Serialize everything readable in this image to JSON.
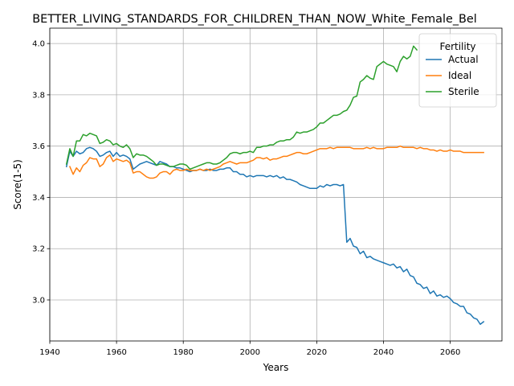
{
  "chart_data": {
    "type": "line",
    "title": "BETTER_LIVING_STANDARDS_FOR_CHILDREN_THAN_NOW_White_Female_Bel",
    "xlabel": "Years",
    "ylabel": "Score(1-5)",
    "xlim": [
      1940,
      2075.5
    ],
    "ylim": [
      2.84,
      4.06
    ],
    "xticks": [
      1940,
      1960,
      1980,
      2000,
      2020,
      2040,
      2060
    ],
    "yticks": [
      3.0,
      3.2,
      3.4,
      3.6,
      3.8,
      4.0
    ],
    "xtick_labels": [
      "1940",
      "1960",
      "1980",
      "2000",
      "2020",
      "2040",
      "2060"
    ],
    "ytick_labels": [
      "3.0",
      "3.2",
      "3.4",
      "3.6",
      "3.8",
      "4.0"
    ],
    "grid": true,
    "legend": {
      "title": "Fertility",
      "position": "top-right"
    },
    "series": [
      {
        "name": "Actual",
        "color": "#1f77b4",
        "x": [
          1945,
          1946,
          1947,
          1948,
          1949,
          1950,
          1951,
          1952,
          1953,
          1954,
          1955,
          1956,
          1957,
          1958,
          1959,
          1960,
          1961,
          1962,
          1963,
          1964,
          1965,
          1966,
          1967,
          1968,
          1969,
          1970,
          1971,
          1972,
          1973,
          1974,
          1975,
          1976,
          1977,
          1978,
          1979,
          1980,
          1981,
          1982,
          1983,
          1984,
          1985,
          1986,
          1987,
          1988,
          1989,
          1990,
          1991,
          1992,
          1993,
          1994,
          1995,
          1996,
          1997,
          1998,
          1999,
          2000,
          2001,
          2002,
          2003,
          2004,
          2005,
          2006,
          2007,
          2008,
          2009,
          2010,
          2011,
          2012,
          2013,
          2014,
          2015,
          2016,
          2017,
          2018,
          2019,
          2020,
          2021,
          2022,
          2023,
          2024,
          2025,
          2026,
          2027,
          2028,
          2029,
          2030,
          2031,
          2032,
          2033,
          2034,
          2035,
          2036,
          2037,
          2038,
          2039,
          2040,
          2041,
          2042,
          2043,
          2044,
          2045,
          2046,
          2047,
          2048,
          2049,
          2050,
          2051,
          2052,
          2053,
          2054,
          2055,
          2056,
          2057,
          2058,
          2059,
          2060,
          2061,
          2062,
          2063,
          2064,
          2065,
          2066,
          2067,
          2068,
          2069,
          2070
        ],
        "y": [
          3.52,
          3.58,
          3.56,
          3.58,
          3.57,
          3.575,
          3.59,
          3.595,
          3.59,
          3.58,
          3.56,
          3.565,
          3.575,
          3.58,
          3.56,
          3.575,
          3.56,
          3.565,
          3.56,
          3.55,
          3.51,
          3.52,
          3.53,
          3.535,
          3.54,
          3.535,
          3.53,
          3.525,
          3.54,
          3.535,
          3.53,
          3.52,
          3.52,
          3.515,
          3.515,
          3.51,
          3.505,
          3.5,
          3.505,
          3.505,
          3.51,
          3.505,
          3.505,
          3.51,
          3.505,
          3.505,
          3.51,
          3.51,
          3.515,
          3.515,
          3.5,
          3.5,
          3.49,
          3.49,
          3.48,
          3.485,
          3.48,
          3.485,
          3.485,
          3.485,
          3.48,
          3.485,
          3.48,
          3.485,
          3.475,
          3.48,
          3.47,
          3.47,
          3.465,
          3.46,
          3.45,
          3.445,
          3.44,
          3.435,
          3.435,
          3.435,
          3.445,
          3.44,
          3.45,
          3.445,
          3.45,
          3.45,
          3.445,
          3.45,
          3.225,
          3.24,
          3.21,
          3.205,
          3.18,
          3.19,
          3.165,
          3.17,
          3.16,
          3.155,
          3.15,
          3.145,
          3.14,
          3.135,
          3.14,
          3.125,
          3.13,
          3.11,
          3.12,
          3.095,
          3.09,
          3.065,
          3.06,
          3.045,
          3.05,
          3.025,
          3.035,
          3.015,
          3.02,
          3.01,
          3.015,
          3.005,
          2.99,
          2.985,
          2.975,
          2.975,
          2.95,
          2.945,
          2.93,
          2.925,
          2.905,
          2.915
        ]
      },
      {
        "name": "Ideal",
        "color": "#ff7f0e",
        "x": [
          1946,
          1947,
          1948,
          1949,
          1950,
          1951,
          1952,
          1953,
          1954,
          1955,
          1956,
          1957,
          1958,
          1959,
          1960,
          1961,
          1962,
          1963,
          1964,
          1965,
          1966,
          1967,
          1968,
          1969,
          1970,
          1971,
          1972,
          1973,
          1974,
          1975,
          1976,
          1977,
          1978,
          1979,
          1980,
          1981,
          1982,
          1983,
          1984,
          1985,
          1986,
          1987,
          1988,
          1989,
          1990,
          1991,
          1992,
          1993,
          1994,
          1995,
          1996,
          1997,
          1998,
          1999,
          2000,
          2001,
          2002,
          2003,
          2004,
          2005,
          2006,
          2007,
          2008,
          2009,
          2010,
          2011,
          2012,
          2013,
          2014,
          2015,
          2016,
          2017,
          2018,
          2019,
          2020,
          2021,
          2022,
          2023,
          2024,
          2025,
          2026,
          2027,
          2028,
          2029,
          2030,
          2031,
          2032,
          2033,
          2034,
          2035,
          2036,
          2037,
          2038,
          2039,
          2040,
          2041,
          2042,
          2043,
          2044,
          2045,
          2046,
          2047,
          2048,
          2049,
          2050,
          2051,
          2052,
          2053,
          2054,
          2055,
          2056,
          2057,
          2058,
          2059,
          2060,
          2061,
          2062,
          2063,
          2064,
          2065,
          2066,
          2067,
          2068,
          2069,
          2070
        ],
        "y": [
          3.52,
          3.49,
          3.515,
          3.5,
          3.525,
          3.535,
          3.555,
          3.55,
          3.55,
          3.52,
          3.53,
          3.555,
          3.565,
          3.54,
          3.55,
          3.545,
          3.54,
          3.545,
          3.535,
          3.495,
          3.5,
          3.5,
          3.49,
          3.48,
          3.475,
          3.475,
          3.48,
          3.495,
          3.5,
          3.5,
          3.49,
          3.505,
          3.51,
          3.505,
          3.505,
          3.51,
          3.505,
          3.505,
          3.505,
          3.51,
          3.505,
          3.51,
          3.505,
          3.51,
          3.515,
          3.52,
          3.53,
          3.535,
          3.54,
          3.535,
          3.53,
          3.535,
          3.535,
          3.535,
          3.54,
          3.545,
          3.555,
          3.555,
          3.55,
          3.555,
          3.545,
          3.55,
          3.55,
          3.555,
          3.56,
          3.56,
          3.565,
          3.57,
          3.575,
          3.575,
          3.57,
          3.57,
          3.575,
          3.58,
          3.585,
          3.59,
          3.59,
          3.59,
          3.595,
          3.59,
          3.595,
          3.595,
          3.595,
          3.595,
          3.595,
          3.59,
          3.59,
          3.59,
          3.59,
          3.595,
          3.59,
          3.595,
          3.59,
          3.59,
          3.59,
          3.595,
          3.595,
          3.595,
          3.595,
          3.6,
          3.595,
          3.595,
          3.595,
          3.595,
          3.59,
          3.595,
          3.59,
          3.59,
          3.585,
          3.585,
          3.58,
          3.585,
          3.58,
          3.58,
          3.585,
          3.58,
          3.58,
          3.58,
          3.575,
          3.575,
          3.575,
          3.575,
          3.575,
          3.575,
          3.575
        ]
      },
      {
        "name": "Sterile",
        "color": "#2ca02c",
        "x": [
          1945,
          1946,
          1947,
          1948,
          1949,
          1950,
          1951,
          1952,
          1953,
          1954,
          1955,
          1956,
          1957,
          1958,
          1959,
          1960,
          1961,
          1962,
          1963,
          1964,
          1965,
          1966,
          1967,
          1968,
          1969,
          1970,
          1971,
          1972,
          1973,
          1974,
          1975,
          1976,
          1977,
          1978,
          1979,
          1980,
          1981,
          1982,
          1983,
          1984,
          1985,
          1986,
          1987,
          1988,
          1989,
          1990,
          1991,
          1992,
          1993,
          1994,
          1995,
          1996,
          1997,
          1998,
          1999,
          2000,
          2001,
          2002,
          2003,
          2004,
          2005,
          2006,
          2007,
          2008,
          2009,
          2010,
          2011,
          2012,
          2013,
          2014,
          2015,
          2016,
          2017,
          2018,
          2019,
          2020,
          2021,
          2022,
          2023,
          2024,
          2025,
          2026,
          2027,
          2028,
          2029,
          2030,
          2031,
          2032,
          2033,
          2034,
          2035,
          2036,
          2037,
          2038,
          2039,
          2040,
          2041,
          2042,
          2043,
          2044,
          2045,
          2046,
          2047,
          2048,
          2049,
          2050
        ],
        "y": [
          3.53,
          3.59,
          3.56,
          3.62,
          3.62,
          3.645,
          3.64,
          3.65,
          3.645,
          3.64,
          3.61,
          3.615,
          3.625,
          3.62,
          3.605,
          3.61,
          3.6,
          3.595,
          3.605,
          3.59,
          3.555,
          3.57,
          3.565,
          3.565,
          3.56,
          3.55,
          3.54,
          3.525,
          3.53,
          3.53,
          3.525,
          3.52,
          3.52,
          3.525,
          3.53,
          3.53,
          3.525,
          3.51,
          3.515,
          3.52,
          3.525,
          3.53,
          3.535,
          3.535,
          3.53,
          3.53,
          3.535,
          3.545,
          3.555,
          3.57,
          3.575,
          3.575,
          3.57,
          3.575,
          3.575,
          3.58,
          3.575,
          3.595,
          3.595,
          3.6,
          3.6,
          3.605,
          3.605,
          3.615,
          3.62,
          3.62,
          3.625,
          3.625,
          3.635,
          3.655,
          3.65,
          3.655,
          3.655,
          3.66,
          3.665,
          3.675,
          3.69,
          3.69,
          3.7,
          3.71,
          3.72,
          3.72,
          3.725,
          3.735,
          3.74,
          3.76,
          3.79,
          3.795,
          3.85,
          3.86,
          3.875,
          3.865,
          3.86,
          3.91,
          3.92,
          3.93,
          3.92,
          3.915,
          3.91,
          3.89,
          3.93,
          3.95,
          3.94,
          3.95,
          3.99,
          3.975
        ]
      }
    ]
  }
}
